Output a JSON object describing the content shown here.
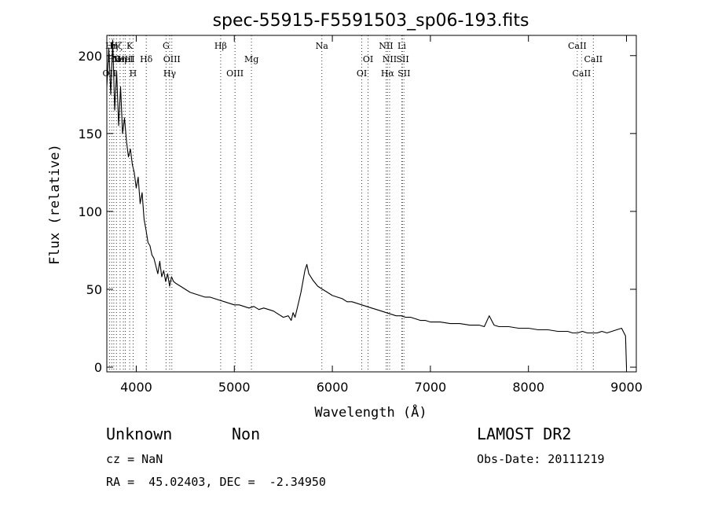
{
  "chart_data": {
    "type": "line",
    "title": "spec-55915-F5591503_sp06-193.fits",
    "xlabel": "Wavelength (Å)",
    "ylabel": "Flux (relative)",
    "xlim": [
      3700,
      9100
    ],
    "ylim": [
      -3,
      213
    ],
    "xticks": [
      4000,
      5000,
      6000,
      7000,
      8000,
      9000
    ],
    "yticks": [
      0,
      50,
      100,
      150,
      200
    ],
    "series": [
      {
        "x": [
          3700,
          3720,
          3740,
          3760,
          3780,
          3800,
          3820,
          3840,
          3860,
          3880,
          3900,
          3920,
          3940,
          3960,
          3980,
          4000,
          4020,
          4040,
          4060,
          4080,
          4100,
          4120,
          4140,
          4160,
          4180,
          4200,
          4220,
          4240,
          4260,
          4280,
          4300,
          4320,
          4340,
          4360,
          4380,
          4400,
          4450,
          4500,
          4550,
          4600,
          4650,
          4700,
          4750,
          4800,
          4850,
          4900,
          4950,
          5000,
          5050,
          5100,
          5150,
          5200,
          5250,
          5300,
          5350,
          5400,
          5450,
          5500,
          5550,
          5580,
          5600,
          5620,
          5650,
          5680,
          5700,
          5720,
          5740,
          5760,
          5780,
          5800,
          5850,
          5900,
          5950,
          6000,
          6050,
          6100,
          6150,
          6200,
          6250,
          6300,
          6350,
          6400,
          6450,
          6500,
          6550,
          6600,
          6650,
          6700,
          6750,
          6800,
          6850,
          6900,
          6950,
          7000,
          7100,
          7200,
          7300,
          7400,
          7500,
          7550,
          7600,
          7650,
          7700,
          7800,
          7900,
          8000,
          8100,
          8200,
          8300,
          8400,
          8450,
          8500,
          8550,
          8600,
          8650,
          8700,
          8750,
          8800,
          8850,
          8900,
          8950,
          8990,
          9000
        ],
        "y": [
          180,
          205,
          175,
          210,
          165,
          190,
          155,
          180,
          150,
          160,
          145,
          135,
          140,
          130,
          125,
          115,
          122,
          105,
          112,
          95,
          88,
          80,
          78,
          72,
          70,
          65,
          60,
          68,
          58,
          62,
          55,
          60,
          52,
          58,
          55,
          54,
          52,
          50,
          48,
          47,
          46,
          45,
          45,
          44,
          43,
          42,
          41,
          40,
          40,
          39,
          38,
          39,
          37,
          38,
          37,
          36,
          34,
          32,
          33,
          30,
          35,
          32,
          40,
          48,
          55,
          62,
          66,
          60,
          58,
          56,
          52,
          50,
          48,
          46,
          45,
          44,
          42,
          42,
          41,
          40,
          39,
          38,
          37,
          36,
          35,
          34,
          33,
          33,
          32,
          32,
          31,
          30,
          30,
          29,
          29,
          28,
          28,
          27,
          27,
          26,
          33,
          27,
          26,
          26,
          25,
          25,
          24,
          24,
          23,
          23,
          22,
          22,
          23,
          22,
          22,
          22,
          23,
          22,
          23,
          24,
          25,
          20,
          0
        ]
      }
    ],
    "line_markers": [
      {
        "x": 3727,
        "label": "OII",
        "row": 3
      },
      {
        "x": 3750,
        "label": "Hη",
        "row": 1
      },
      {
        "x": 3771,
        "label": "Hθ",
        "row": 2
      },
      {
        "x": 3798,
        "label": "Hζ",
        "row": 1
      },
      {
        "x": 3835,
        "label": "Hη",
        "row": 2
      },
      {
        "x": 3869,
        "label": "NeIII",
        "row": 2
      },
      {
        "x": 3889,
        "label": "HeI",
        "row": 2
      },
      {
        "x": 3933,
        "label": "K",
        "row": 1
      },
      {
        "x": 3968,
        "label": "H",
        "row": 3
      },
      {
        "x": 4102,
        "label": "Hδ",
        "row": 2
      },
      {
        "x": 4304,
        "label": "G",
        "row": 1
      },
      {
        "x": 4341,
        "label": "Hγ",
        "row": 3
      },
      {
        "x": 4363,
        "label": "OIII",
        "row": 2
      },
      {
        "x": 4861,
        "label": "Hβ",
        "row": 1
      },
      {
        "x": 5007,
        "label": "OIII",
        "row": 3
      },
      {
        "x": 5175,
        "label": "Mg",
        "row": 2
      },
      {
        "x": 5893,
        "label": "Na",
        "row": 1
      },
      {
        "x": 6300,
        "label": "OI",
        "row": 3
      },
      {
        "x": 6364,
        "label": "OI",
        "row": 2
      },
      {
        "x": 6548,
        "label": "NII",
        "row": 1
      },
      {
        "x": 6563,
        "label": "Hα",
        "row": 3
      },
      {
        "x": 6584,
        "label": "NII",
        "row": 2
      },
      {
        "x": 6708,
        "label": "Li",
        "row": 1
      },
      {
        "x": 6717,
        "label": "SII",
        "row": 2
      },
      {
        "x": 6731,
        "label": "SII",
        "row": 3
      },
      {
        "x": 8498,
        "label": "CaII",
        "row": 1
      },
      {
        "x": 8542,
        "label": "CaII",
        "row": 3
      },
      {
        "x": 8662,
        "label": "CaII",
        "row": 2
      }
    ]
  },
  "info": {
    "classification": "Unknown",
    "subclass": "Non",
    "survey": "LAMOST DR2",
    "redshift": "cz = NaN",
    "obs_date": "Obs-Date: 20111219",
    "coords": "RA =  45.02403, DEC =  -2.34950"
  }
}
